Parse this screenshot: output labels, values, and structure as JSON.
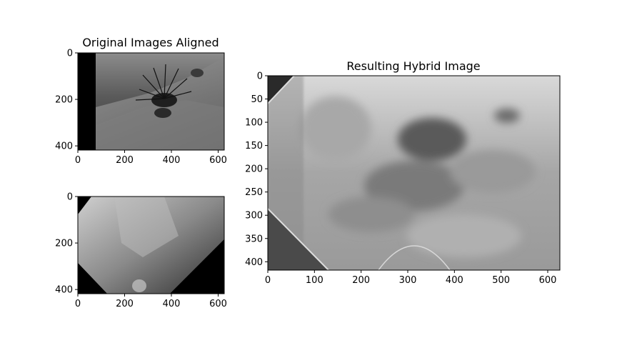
{
  "chart_data": [
    {
      "type": "image",
      "title": "Original Images Aligned",
      "xlabel": "",
      "ylabel": "",
      "xlim": [
        0,
        626
      ],
      "ylim": [
        418,
        0
      ],
      "x_ticks": [
        0,
        200,
        400,
        600
      ],
      "y_ticks": [
        0,
        200,
        400
      ],
      "colormap": "gray",
      "content": "grayscale photo of a sea urchin on rocks, black padding band on left"
    },
    {
      "type": "image",
      "title": "",
      "xlabel": "",
      "ylabel": "",
      "xlim": [
        0,
        626
      ],
      "ylim": [
        418,
        0
      ],
      "x_ticks": [
        0,
        200,
        400,
        600
      ],
      "y_ticks": [
        0,
        200,
        400
      ],
      "colormap": "gray",
      "content": "grayscale underwater photo rotated, black corners"
    },
    {
      "type": "image",
      "title": "Resulting Hybrid Image",
      "xlabel": "",
      "ylabel": "",
      "xlim": [
        0,
        626
      ],
      "ylim": [
        418,
        0
      ],
      "x_ticks": [
        0,
        100,
        200,
        300,
        400,
        500,
        600
      ],
      "y_ticks": [
        0,
        50,
        100,
        150,
        200,
        250,
        300,
        350,
        400
      ],
      "colormap": "gray",
      "content": "blurred blend of the two aligned images"
    }
  ]
}
